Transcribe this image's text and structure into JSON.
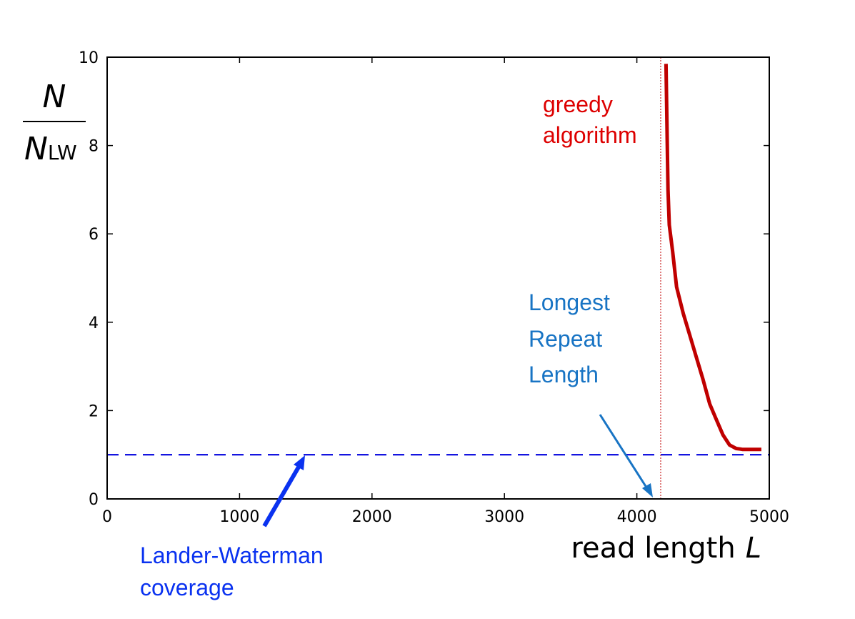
{
  "chart_data": {
    "type": "line",
    "xlabel": "read length",
    "xlabel_var": "L",
    "ylabel": {
      "numerator": "N",
      "denominator": "N",
      "denominator_sub": "LW"
    },
    "xlim": [
      0,
      5000
    ],
    "ylim": [
      0,
      10
    ],
    "xticks": [
      "0",
      "1000",
      "2000",
      "3000",
      "4000",
      "5000"
    ],
    "yticks": [
      "0",
      "2",
      "4",
      "6",
      "8",
      "10"
    ],
    "grid": false,
    "series": [
      {
        "name": "greedy algorithm",
        "color": "#c00000",
        "x": [
          4220,
          4230,
          4235,
          4245,
          4270,
          4300,
          4350,
          4400,
          4450,
          4500,
          4550,
          4600,
          4650,
          4700,
          4750,
          4780,
          4800,
          4850,
          4900,
          4940
        ],
        "y": [
          9.85,
          8.0,
          7.0,
          6.2,
          5.6,
          4.8,
          4.2,
          3.7,
          3.2,
          2.7,
          2.15,
          1.8,
          1.45,
          1.22,
          1.14,
          1.13,
          1.12,
          1.12,
          1.12,
          1.12
        ]
      }
    ],
    "reference_lines": [
      {
        "name": "Lander-Waterman coverage",
        "orientation": "horizontal",
        "value": 1,
        "style": "dashed",
        "color": "#0000dd"
      },
      {
        "name": "Longest Repeat Length",
        "orientation": "vertical",
        "value": 4180,
        "style": "dotted",
        "color": "#c00000"
      }
    ],
    "annotations": [
      {
        "id": "greedy",
        "lines": [
          "greedy",
          "algorithm"
        ],
        "color": "#dd0000"
      },
      {
        "id": "repeat",
        "lines": [
          "Longest",
          "Repeat",
          "Length"
        ],
        "color": "#1874c4",
        "arrow_to": [
          4150,
          0.02
        ]
      },
      {
        "id": "lw",
        "lines": [
          "Lander-Waterman",
          "coverage"
        ],
        "color": "#0a32f0",
        "arrow_to": [
          1500,
          0.95
        ]
      }
    ]
  }
}
